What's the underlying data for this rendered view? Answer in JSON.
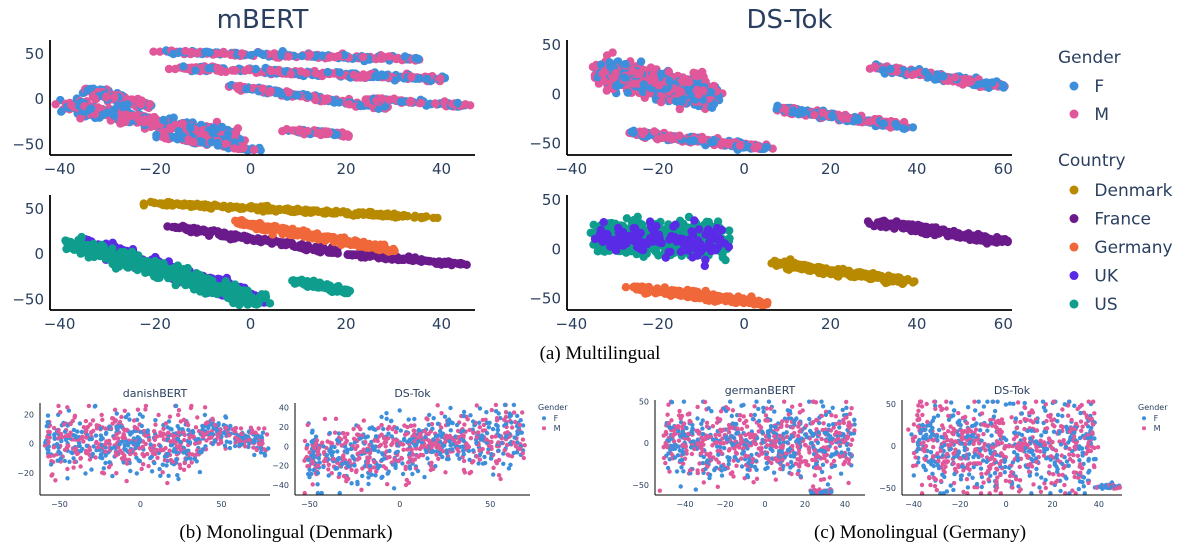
{
  "figure": {
    "captions": {
      "multilingual": "(a) Multilingual",
      "danish": "(b) Monolingual (Denmark)",
      "german": "(c) Monolingual (Germany)"
    }
  },
  "colors": {
    "F": "#3d8fdb",
    "M": "#e0589a",
    "Denmark": "#b88a00",
    "France": "#6a1a8a",
    "Germany": "#f0683a",
    "UK": "#5a2be6",
    "US": "#0f9e8e"
  },
  "legends": {
    "big": {
      "gender_title": "Gender",
      "gender_items": [
        "F",
        "M"
      ],
      "country_title": "Country",
      "country_items": [
        "Denmark",
        "France",
        "Germany",
        "UK",
        "US"
      ]
    },
    "small_b": {
      "title": "Gender",
      "items": [
        "F",
        "M"
      ]
    },
    "small_c": {
      "title": "Gender",
      "items": [
        "F",
        "M"
      ]
    }
  },
  "chart_data": [
    {
      "id": "mbert_gender",
      "type": "scatter",
      "title": "mBERT",
      "color_by": "Gender",
      "xlim": [
        -42,
        47
      ],
      "ylim": [
        -62,
        65
      ],
      "xticks": [
        -40,
        -20,
        0,
        20,
        40
      ],
      "yticks": [
        -50,
        0,
        50
      ],
      "clusters": [
        {
          "x": [
            -19,
            36
          ],
          "y": [
            52,
            44
          ],
          "w": 3,
          "n": 220
        },
        {
          "x": [
            -15,
            40
          ],
          "y": [
            34,
            22
          ],
          "w": 4,
          "n": 260
        },
        {
          "x": [
            -34,
            -22
          ],
          "y": [
            10,
            -8
          ],
          "w": 6,
          "n": 150
        },
        {
          "x": [
            -38,
            -3
          ],
          "y": [
            -8,
            -42
          ],
          "w": 9,
          "n": 420
        },
        {
          "x": [
            -18,
            1
          ],
          "y": [
            -40,
            -57
          ],
          "w": 3,
          "n": 120
        },
        {
          "x": [
            -4,
            28
          ],
          "y": [
            14,
            -10
          ],
          "w": 3,
          "n": 160
        },
        {
          "x": [
            25,
            45
          ],
          "y": [
            0,
            -8
          ],
          "w": 2,
          "n": 80
        },
        {
          "x": [
            9,
            20
          ],
          "y": [
            -35,
            -40
          ],
          "w": 3,
          "n": 70
        }
      ]
    },
    {
      "id": "dstok_gender",
      "type": "scatter",
      "title": "DS-Tok",
      "color_by": "Gender",
      "xlim": [
        -41,
        62
      ],
      "ylim": [
        -62,
        55
      ],
      "xticks": [
        -40,
        -20,
        0,
        20,
        40,
        60
      ],
      "yticks": [
        -50,
        0,
        50
      ],
      "clusters": [
        {
          "x": [
            -33,
            -7
          ],
          "y": [
            20,
            0
          ],
          "w": 18,
          "n": 700
        },
        {
          "x": [
            -25,
            5
          ],
          "y": [
            -40,
            -55
          ],
          "w": 4,
          "n": 220
        },
        {
          "x": [
            8,
            38
          ],
          "y": [
            -15,
            -33
          ],
          "w": 4,
          "n": 220
        },
        {
          "x": [
            31,
            59
          ],
          "y": [
            27,
            8
          ],
          "w": 4,
          "n": 220
        }
      ]
    },
    {
      "id": "mbert_country",
      "type": "scatter",
      "color_by": "Country",
      "xlim": [
        -42,
        47
      ],
      "ylim": [
        -62,
        65
      ],
      "xticks": [
        -40,
        -20,
        0,
        20,
        40
      ],
      "yticks": [
        -50,
        0,
        50
      ],
      "clusters": [
        {
          "x": [
            -21,
            38
          ],
          "y": [
            56,
            40
          ],
          "w": 3,
          "n": 240,
          "c": "Denmark"
        },
        {
          "x": [
            -16,
            18
          ],
          "y": [
            30,
            2
          ],
          "w": 3,
          "n": 160,
          "c": "France"
        },
        {
          "x": [
            20,
            45
          ],
          "y": [
            0,
            -12
          ],
          "w": 2,
          "n": 110,
          "c": "France"
        },
        {
          "x": [
            -3,
            30
          ],
          "y": [
            35,
            4
          ],
          "w": 4,
          "n": 220,
          "c": "Germany"
        },
        {
          "x": [
            -34,
            2
          ],
          "y": [
            12,
            -52
          ],
          "w": 10,
          "n": 300,
          "c": "UK"
        },
        {
          "x": [
            -37,
            2
          ],
          "y": [
            10,
            -52
          ],
          "w": 10,
          "n": 420,
          "c": "US"
        },
        {
          "x": [
            10,
            20
          ],
          "y": [
            -30,
            -42
          ],
          "w": 3,
          "n": 80,
          "c": "US"
        }
      ]
    },
    {
      "id": "dstok_country",
      "type": "scatter",
      "color_by": "Country",
      "xlim": [
        -41,
        62
      ],
      "ylim": [
        -62,
        55
      ],
      "xticks": [
        -40,
        -20,
        0,
        20,
        40,
        60
      ],
      "yticks": [
        -50,
        0,
        50
      ],
      "clusters": [
        {
          "x": [
            -34,
            -5
          ],
          "y": [
            14,
            8
          ],
          "w": 20,
          "n": 650,
          "c": "US"
        },
        {
          "x": [
            -34,
            -5
          ],
          "y": [
            14,
            8
          ],
          "w": 20,
          "n": 120,
          "c": "UK"
        },
        {
          "x": [
            31,
            59
          ],
          "y": [
            27,
            8
          ],
          "w": 4,
          "n": 240,
          "c": "France"
        },
        {
          "x": [
            8,
            38
          ],
          "y": [
            -15,
            -33
          ],
          "w": 4,
          "n": 240,
          "c": "Denmark"
        },
        {
          "x": [
            -25,
            5
          ],
          "y": [
            -40,
            -55
          ],
          "w": 4,
          "n": 240,
          "c": "Germany"
        }
      ]
    },
    {
      "id": "danishbert",
      "type": "scatter",
      "title": "danishBERT",
      "color_by": "Gender",
      "xlim": [
        -62,
        80
      ],
      "ylim": [
        -35,
        28
      ],
      "xticks": [
        -50,
        0,
        50
      ],
      "yticks": [
        -20,
        0,
        20
      ],
      "clusters": [
        {
          "x": [
            -58,
            40
          ],
          "y": [
            0,
            2
          ],
          "w": 26,
          "n": 600
        },
        {
          "x": [
            40,
            78
          ],
          "y": [
            10,
            0
          ],
          "w": 12,
          "n": 180
        }
      ]
    },
    {
      "id": "dstok_danish",
      "type": "scatter",
      "title": "DS-Tok",
      "color_by": "Gender",
      "xlim": [
        -58,
        72
      ],
      "ylim": [
        -50,
        45
      ],
      "xticks": [
        -50,
        0,
        50
      ],
      "yticks": [
        -40,
        -20,
        0,
        20,
        40
      ],
      "clusters": [
        {
          "x": [
            -52,
            68
          ],
          "y": [
            -12,
            12
          ],
          "w": 40,
          "n": 800
        }
      ]
    },
    {
      "id": "germanbert",
      "type": "scatter",
      "title": "germanBERT",
      "color_by": "Gender",
      "xlim": [
        -55,
        50
      ],
      "ylim": [
        -62,
        52
      ],
      "xticks": [
        -40,
        -20,
        0,
        20,
        40
      ],
      "yticks": [
        -50,
        0,
        50
      ],
      "clusters": [
        {
          "x": [
            -50,
            44
          ],
          "y": [
            2,
            2
          ],
          "w": 55,
          "n": 850
        },
        {
          "x": [
            24,
            33
          ],
          "y": [
            -58,
            -58
          ],
          "w": 4,
          "n": 40
        }
      ]
    },
    {
      "id": "dstok_german",
      "type": "scatter",
      "title": "DS-Tok",
      "color_by": "Gender",
      "xlim": [
        -45,
        50
      ],
      "ylim": [
        -58,
        55
      ],
      "xticks": [
        -40,
        -20,
        0,
        20,
        40
      ],
      "yticks": [
        -50,
        0,
        50
      ],
      "clusters": [
        {
          "x": [
            -40,
            38
          ],
          "y": [
            0,
            0
          ],
          "w": 70,
          "n": 850
        },
        {
          "x": [
            42,
            48
          ],
          "y": [
            -48,
            -48
          ],
          "w": 4,
          "n": 40
        }
      ]
    }
  ]
}
